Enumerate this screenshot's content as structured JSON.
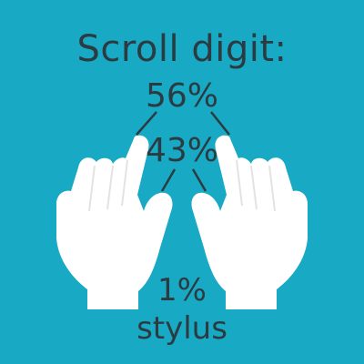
{
  "graphic": {
    "title": "Scroll digit:",
    "stats": {
      "two_fingers": "56%",
      "one_finger": "43%",
      "stylus_percent": "1%",
      "stylus_label": "stylus"
    },
    "colors": {
      "background": "#18A9C4",
      "text": "#2b3b41",
      "hand": "#ffffff",
      "hand_shadow": "#e3e3e3"
    },
    "icons": [
      "left-hand-icon",
      "right-hand-icon"
    ]
  }
}
